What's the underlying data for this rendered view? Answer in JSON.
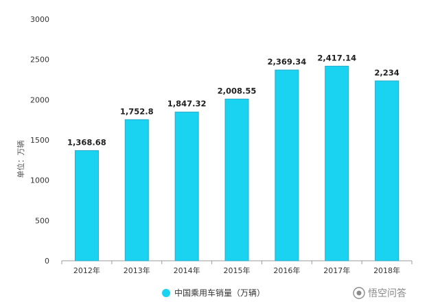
{
  "chart_data": {
    "type": "bar",
    "categories": [
      "2012年",
      "2013年",
      "2014年",
      "2015年",
      "2016年",
      "2017年",
      "2018年"
    ],
    "values": [
      1368.68,
      1752.8,
      1847.32,
      2008.55,
      2369.34,
      2417.14,
      2234
    ],
    "data_labels": [
      "1,368.68",
      "1,752.8",
      "1,847.32",
      "2,008.55",
      "2,369.34",
      "2,417.14",
      "2,234"
    ],
    "ylabel": "单位：万辆",
    "xlabel": "",
    "ylim": [
      0,
      3000
    ],
    "yticks": [
      0,
      500,
      1000,
      1500,
      2000,
      2500,
      3000
    ],
    "grid": false,
    "legend": {
      "placement": "bottom-center",
      "entries": [
        {
          "name": "中国乘用车销量（万辆）",
          "color": "#19d3f0"
        }
      ]
    },
    "series": [
      {
        "name": "中国乘用车销量（万辆）",
        "color": "#19d3f0"
      }
    ]
  },
  "watermark": {
    "text": "悟空问答",
    "icon": "wukong-logo-icon"
  }
}
